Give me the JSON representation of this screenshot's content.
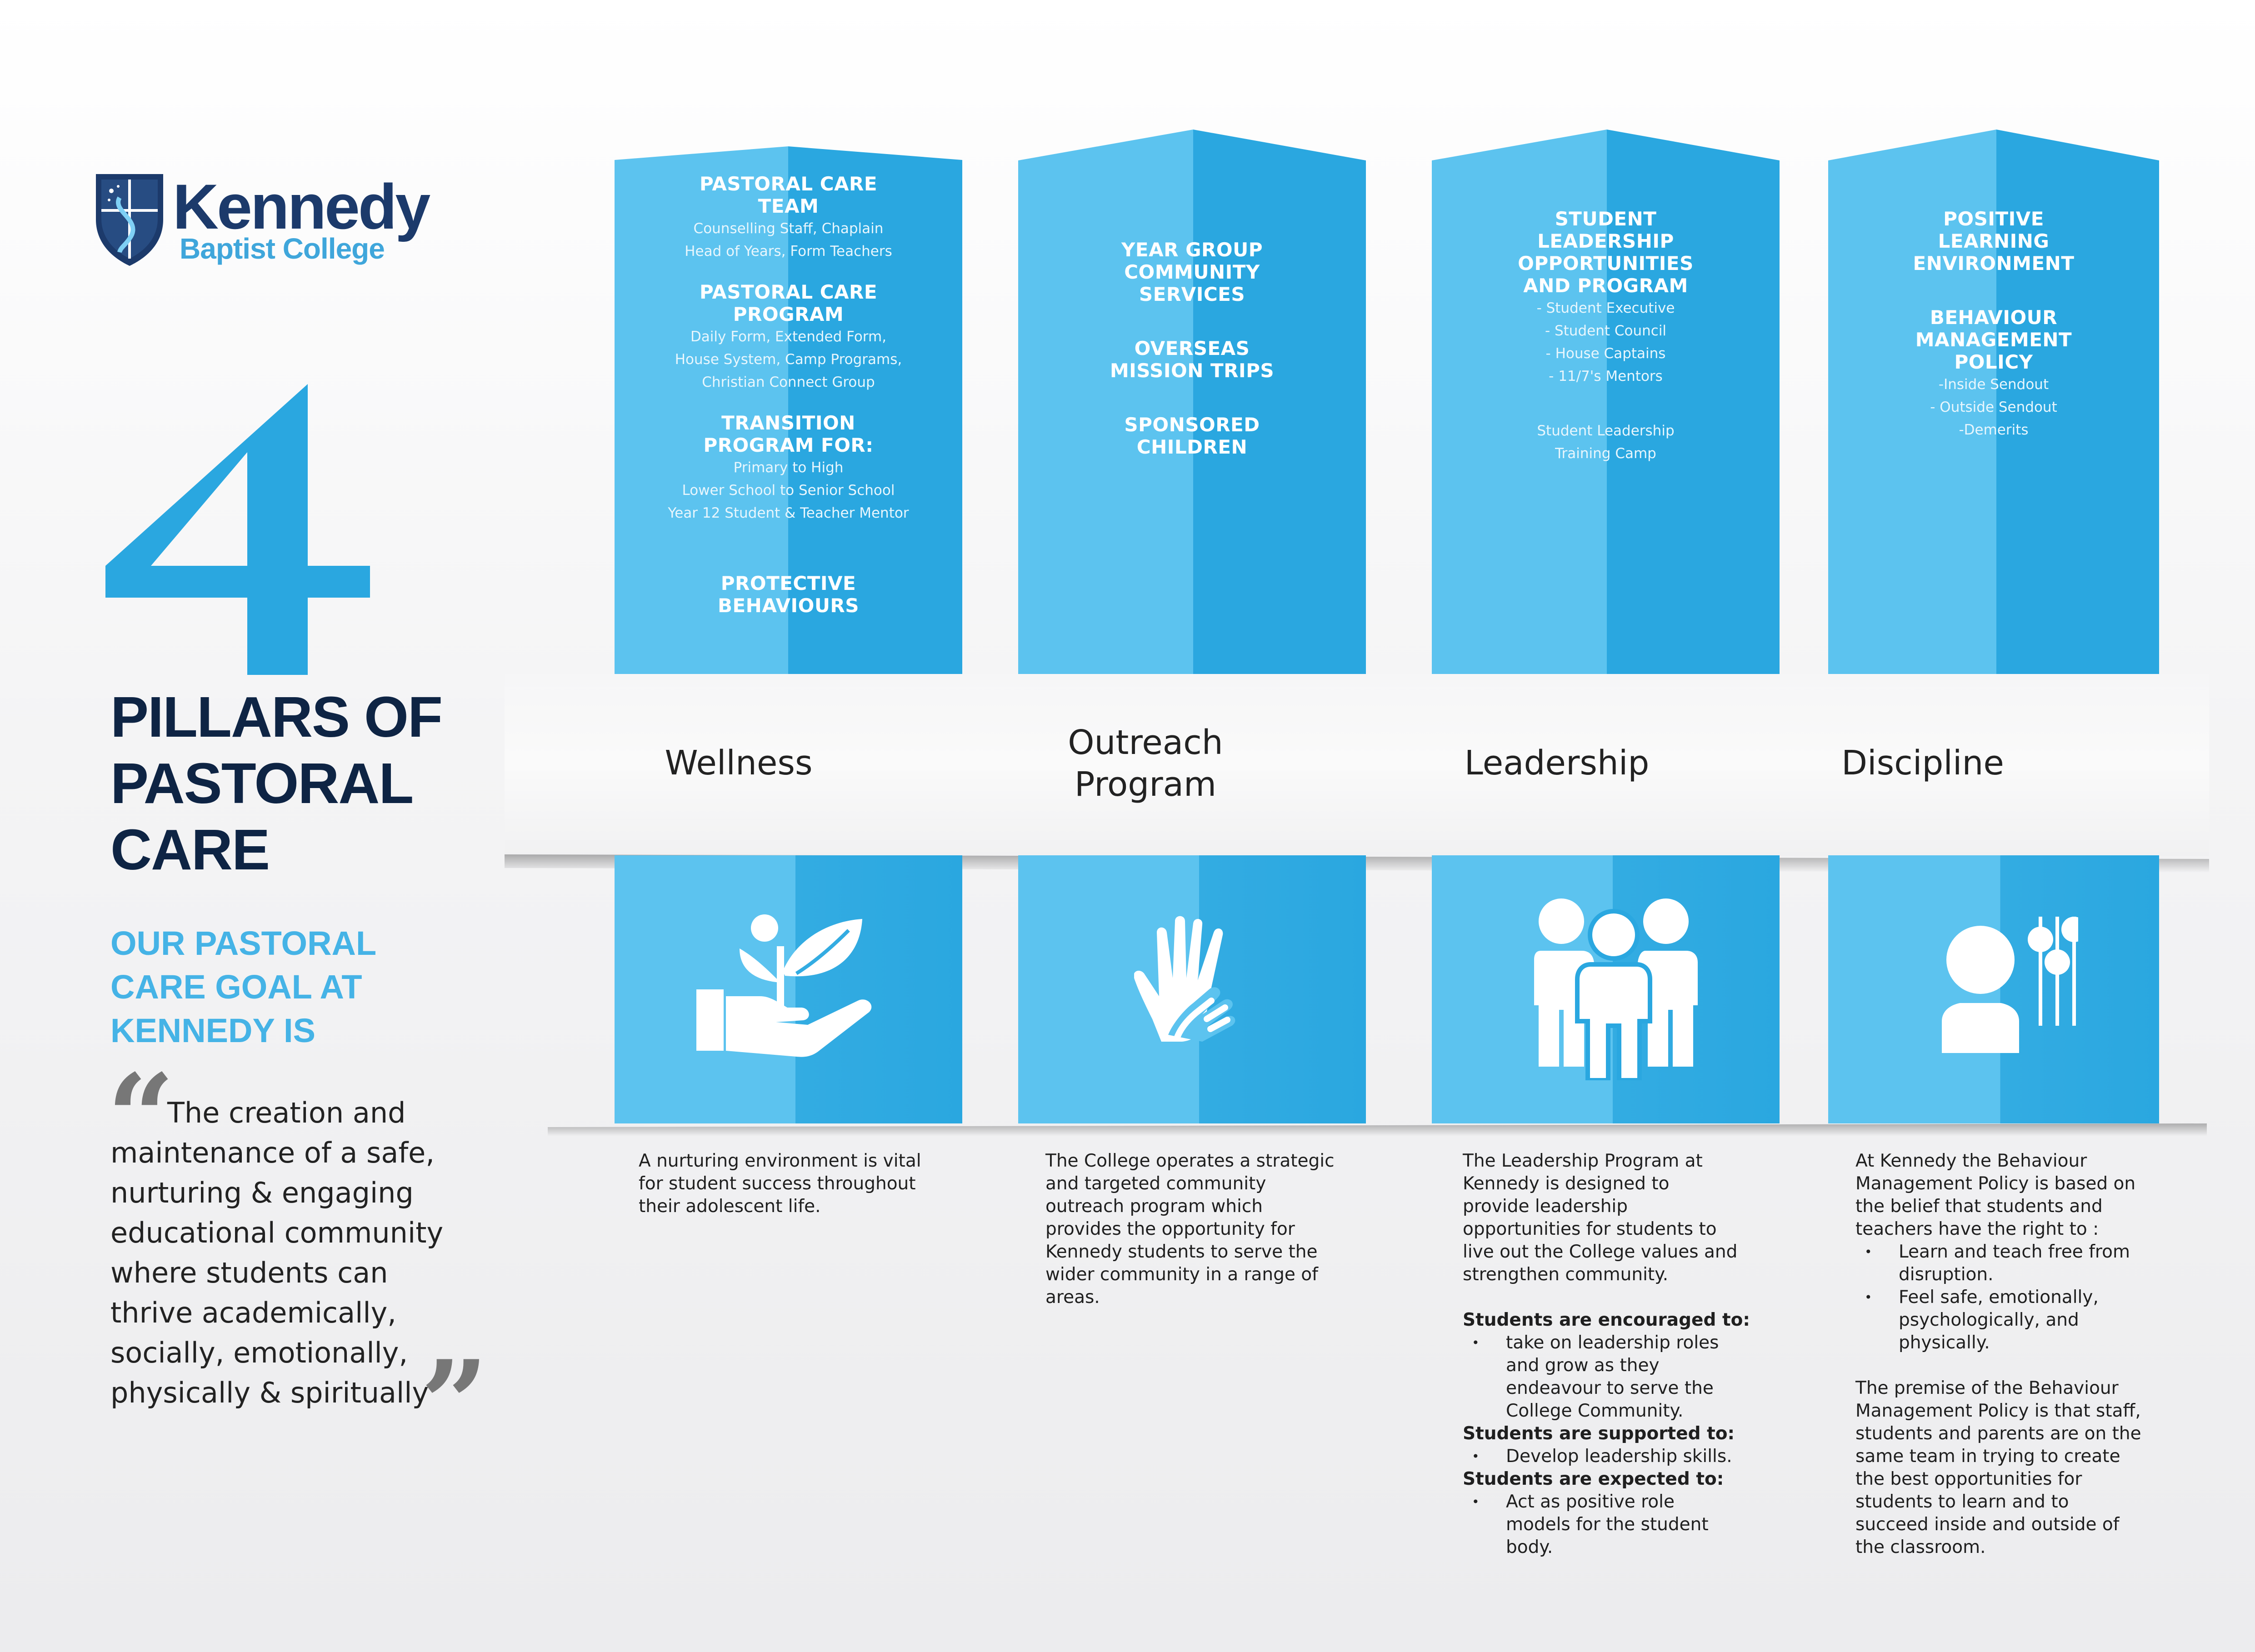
{
  "brand": {
    "name": "Kennedy",
    "subtitle": "Baptist College",
    "colors": {
      "navy": "#1c3a6b",
      "light_blue": "#3fa6db",
      "pillar_blue": "#33ace2",
      "pillar_light": "#5cc3ef"
    }
  },
  "hero": {
    "number": "4",
    "title_lines": [
      "PILLARS OF",
      "PASTORAL",
      "CARE"
    ],
    "goal_lines": [
      "OUR PASTORAL",
      "CARE GOAL AT",
      "KENNEDY IS"
    ],
    "quote_open": "“",
    "quote_text": "The creation and\nmaintenance of a safe,\nnurturing & engaging\neducational community\nwhere students can\nthrive academically,\nsocially, emotionally,\nphysically & spiritually",
    "quote_close": "”"
  },
  "pillars": [
    {
      "name": "Wellness",
      "icon": "hand-with-plant-icon",
      "top": {
        "h1": "PASTORAL CARE",
        "h1b": "TEAM",
        "b1": "Counselling Staff, Chaplain",
        "b2": "Head of Years, Form Teachers",
        "h2": "PASTORAL CARE",
        "h2b": "PROGRAM",
        "b3": "Daily Form, Extended Form,",
        "b4": "House System, Camp Programs,",
        "b5": "Christian Connect Group",
        "h3": "TRANSITION",
        "h3b": "PROGRAM FOR:",
        "b6": "Primary to High",
        "b7": "Lower School to Senior School",
        "b8": "Year 12 Student & Teacher Mentor",
        "h4": "PROTECTIVE",
        "h4b": "BEHAVIOURS"
      },
      "description": "A nurturing environment is vital\nfor student success throughout\ntheir adolescent life."
    },
    {
      "name_line1": "Outreach",
      "name_line2": "Program",
      "icon": "two-hands-icon",
      "top": {
        "h1": "YEAR GROUP",
        "h1b": "COMMUNITY",
        "h1c": "SERVICES",
        "h2": "OVERSEAS",
        "h2b": "MISSION TRIPS",
        "h3": "SPONSORED",
        "h3b": "CHILDREN"
      },
      "description": "The College operates a strategic\nand targeted community\noutreach program which\nprovides the opportunity for\nKennedy students to serve the\nwider community in a range of\nareas."
    },
    {
      "name": "Leadership",
      "icon": "group-of-people-icon",
      "top": {
        "h1": "STUDENT",
        "h1b": "LEADERSHIP",
        "h1c": "OPPORTUNITIES",
        "h1d": "AND PROGRAM",
        "b1": "- Student Executive",
        "b2": "- Student Council",
        "b3": "- House Captains",
        "b4": "- 11/7's Mentors",
        "b5": "Student Leadership",
        "b6": "Training Camp"
      },
      "description": "The Leadership Program at\nKennedy is designed to\nprovide leadership\nopportunities for students to\nlive out the College values and\nstrengthen community.",
      "encouraged_label": "Students are encouraged to:",
      "encouraged_item": "take on leadership roles\nand grow as they\nendeavour to serve the\nCollege Community.",
      "supported_label": "Students are supported to:",
      "supported_item": "Develop leadership skills.",
      "expected_label": "Students are expected to:",
      "expected_item": " Act as positive role\nmodels for the student\nbody."
    },
    {
      "name": "Discipline",
      "icon": "person-with-sliders-icon",
      "top": {
        "h1": "POSITIVE",
        "h1b": "LEARNING",
        "h1c": "ENVIRONMENT",
        "h2": "BEHAVIOUR",
        "h2b": "MANAGEMENT",
        "h2c": "POLICY",
        "b1": "-Inside Sendout",
        "b2": "- Outside Sendout",
        "b3": "-Demerits"
      },
      "description": "At Kennedy the Behaviour\nManagement Policy is based on\nthe belief that students and\nteachers have the right to :",
      "item1": "Learn and teach free from\ndisruption.",
      "item2": " Feel safe, emotionally,\npsychologically, and\nphysically.",
      "description2": "The premise of the Behaviour\nManagement Policy is that staff,\nstudents and parents are on the\nsame team in trying to create\nthe best opportunities for\nstudents to learn and to\nsucceed inside and outside of\nthe classroom."
    }
  ]
}
